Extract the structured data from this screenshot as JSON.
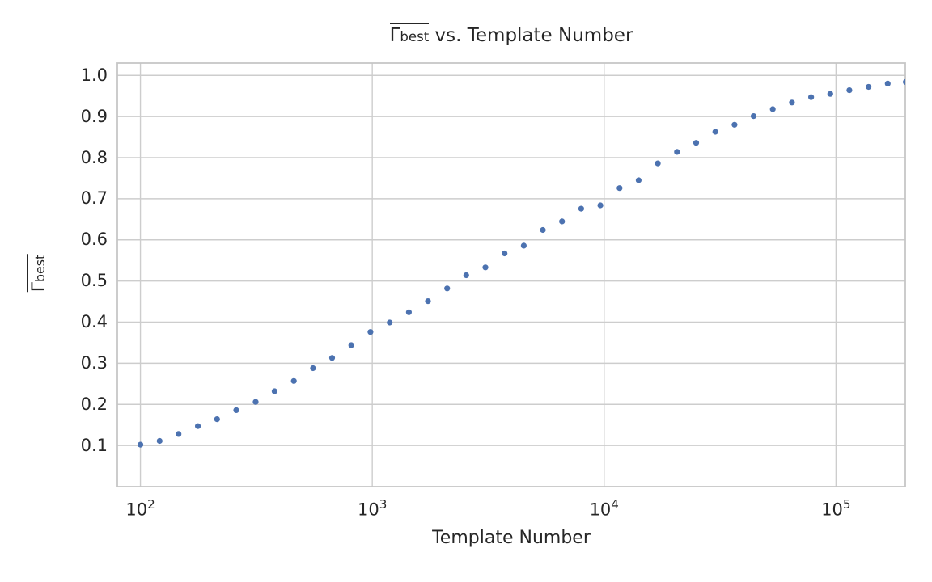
{
  "title": {
    "symbol": "Γ",
    "symbol_sub": "best",
    "suffix": " vs. Template Number"
  },
  "axes": {
    "x": {
      "label": "Template Number",
      "scale": "log",
      "tick_values": [
        100,
        1000,
        10000,
        100000
      ],
      "tick_labels": [
        {
          "base": "10",
          "exp": "2"
        },
        {
          "base": "10",
          "exp": "3"
        },
        {
          "base": "10",
          "exp": "4"
        },
        {
          "base": "10",
          "exp": "5"
        }
      ]
    },
    "y": {
      "label_symbol": "Γ",
      "label_sub": "best",
      "tick_values": [
        1.0,
        0.9,
        0.8,
        0.7,
        0.6,
        0.5,
        0.4,
        0.3,
        0.2,
        0.1
      ],
      "tick_labels": [
        "1.0",
        "0.9",
        "0.8",
        "0.7",
        "0.6",
        "0.5",
        "0.4",
        "0.3",
        "0.2",
        "0.1"
      ]
    }
  },
  "colors": {
    "point": "#4C72B0",
    "grid": "#cdcdcd",
    "spine": "#c6c6c6",
    "text": "#262626",
    "background": "#ffffff"
  },
  "chart_data": {
    "type": "scatter",
    "title": "Γ̄_best vs. Template Number",
    "xlabel": "Template Number",
    "ylabel": "Γ̄_best",
    "xscale": "log",
    "grid": true,
    "legend": false,
    "xlim": [
      79.5,
      199000
    ],
    "ylim": [
      0,
      1.03
    ],
    "marker_radius_px": 3.6,
    "x": [
      100,
      121,
      146,
      177,
      214,
      259,
      314,
      379,
      459,
      555,
      671,
      812,
      982,
      1189,
      1438,
      1739,
      2103,
      2543,
      3076,
      3720,
      4500,
      5443,
      6583,
      7963,
      9631,
      11650,
      14092,
      17045,
      20617,
      24938,
      30164,
      36486,
      44133,
      53382,
      64569,
      78100,
      94467,
      114264,
      138210,
      167173,
      200000
    ],
    "y": [
      0.102,
      0.111,
      0.128,
      0.147,
      0.164,
      0.186,
      0.206,
      0.232,
      0.257,
      0.288,
      0.313,
      0.344,
      0.376,
      0.399,
      0.424,
      0.451,
      0.482,
      0.514,
      0.533,
      0.567,
      0.586,
      0.624,
      0.645,
      0.676,
      0.684,
      0.726,
      0.745,
      0.786,
      0.814,
      0.836,
      0.863,
      0.88,
      0.901,
      0.918,
      0.934,
      0.947,
      0.955,
      0.964,
      0.972,
      0.98,
      0.984
    ]
  }
}
